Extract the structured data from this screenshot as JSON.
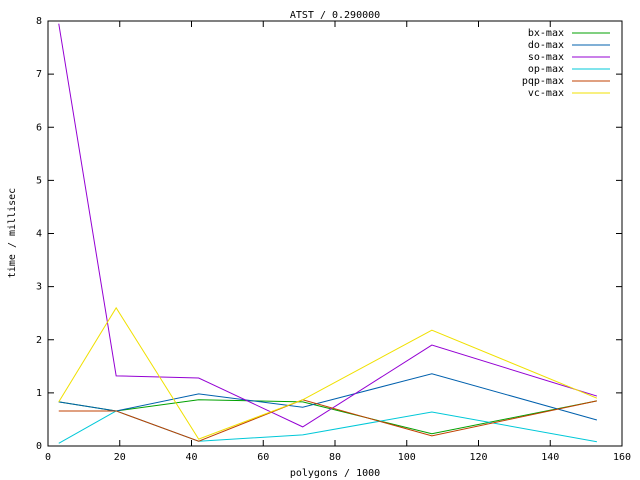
{
  "chart_data": {
    "type": "line",
    "title": "ATST / 0.290000",
    "x_label": "polygons / 1000",
    "y_label": "time / millisec",
    "x": [
      3,
      19,
      42,
      71,
      107,
      153
    ],
    "series": [
      {
        "name": "bx-max",
        "color": "#00a000",
        "values": [
          0.83,
          0.66,
          0.87,
          0.83,
          0.23,
          0.85
        ]
      },
      {
        "name": "do-max",
        "color": "#0060ad",
        "values": [
          0.83,
          0.66,
          0.98,
          0.73,
          1.36,
          0.49
        ]
      },
      {
        "name": "so-max",
        "color": "#9400d3",
        "values": [
          7.95,
          1.32,
          1.28,
          0.36,
          1.9,
          0.94
        ]
      },
      {
        "name": "op-max",
        "color": "#00c8d8",
        "values": [
          0.05,
          0.66,
          0.09,
          0.21,
          0.64,
          0.08
        ]
      },
      {
        "name": "pqp-max",
        "color": "#c04000",
        "values": [
          0.66,
          0.66,
          0.09,
          0.87,
          0.19,
          0.85
        ]
      },
      {
        "name": "vc-max",
        "color": "#f0e000",
        "values": [
          0.83,
          2.6,
          0.13,
          0.87,
          2.18,
          0.9
        ]
      }
    ],
    "xlim": [
      0,
      160
    ],
    "xticks": [
      0,
      20,
      40,
      60,
      80,
      100,
      120,
      140,
      160
    ],
    "ylim": [
      0,
      8
    ],
    "yticks": [
      0,
      1,
      2,
      3,
      4,
      5,
      6,
      7,
      8
    ],
    "legend": "top right"
  }
}
